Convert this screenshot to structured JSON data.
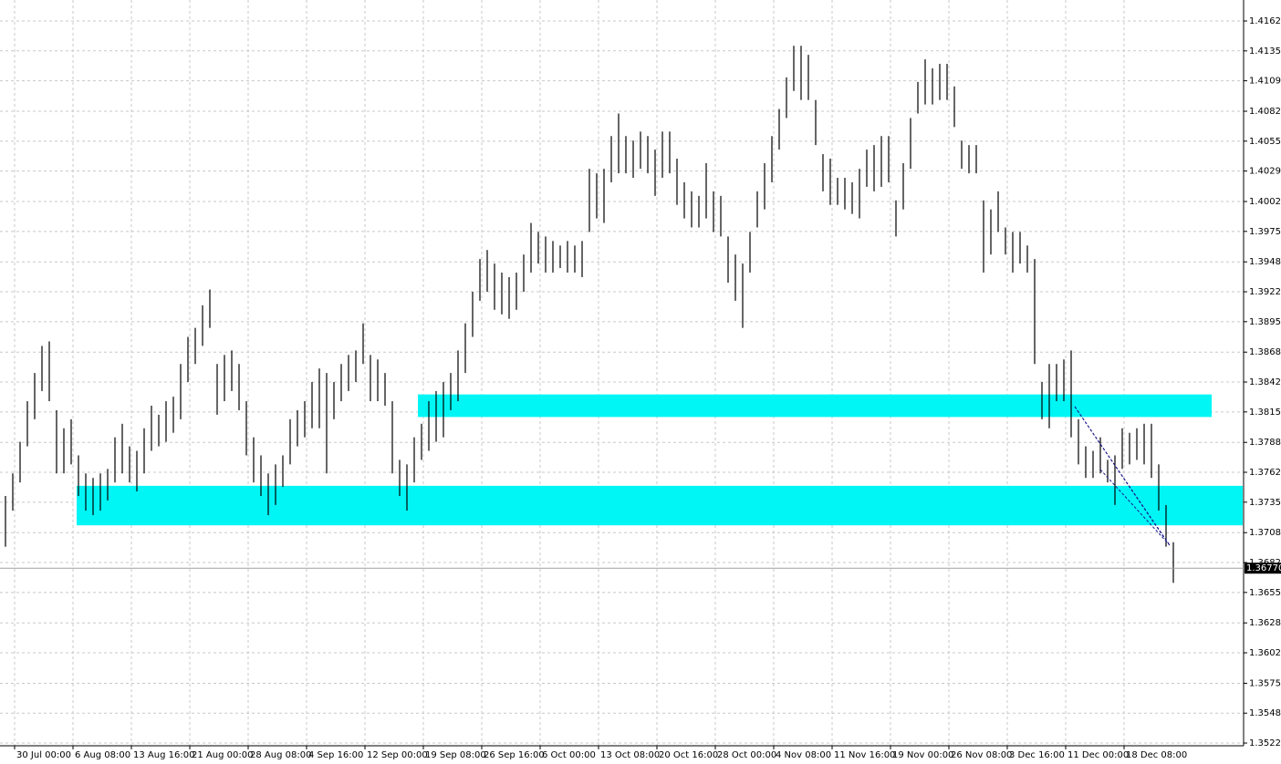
{
  "chart_data": {
    "type": "ohlc-bars",
    "categories": [
      null,
      null,
      "30 Jul 00:00",
      null,
      null,
      null,
      null,
      null,
      null,
      null,
      "6 Aug 08:00",
      null,
      null,
      null,
      null,
      null,
      null,
      null,
      "13 Aug 16:00",
      null,
      null,
      null,
      null,
      null,
      null,
      null,
      "21 Aug 00:00",
      null,
      null,
      null,
      null,
      null,
      null,
      null,
      "28 Aug 08:00",
      null,
      null,
      null,
      null,
      null,
      null,
      null,
      "4 Sep 16:00",
      null,
      null,
      null,
      null,
      null,
      null,
      null,
      "12 Sep 00:00",
      null,
      null,
      null,
      null,
      null,
      null,
      null,
      "19 Sep 08:00",
      null,
      null,
      null,
      null,
      null,
      null,
      null,
      "26 Sep 16:00",
      null,
      null,
      null,
      null,
      null,
      null,
      null,
      "6 Oct 00:00",
      null,
      null,
      null,
      null,
      null,
      null,
      null,
      "13 Oct 08:00",
      null,
      null,
      null,
      null,
      null,
      null,
      null,
      "20 Oct 16:00",
      null,
      null,
      null,
      null,
      null,
      null,
      null,
      "28 Oct 00:00",
      null,
      null,
      null,
      null,
      null,
      null,
      null,
      "4 Nov 08:00",
      null,
      null,
      null,
      null,
      null,
      null,
      null,
      "11 Nov 16:00",
      null,
      null,
      null,
      null,
      null,
      null,
      null,
      "19 Nov 00:00",
      null,
      null,
      null,
      null,
      null,
      null,
      null,
      "26 Nov 08:00",
      null,
      null,
      null,
      null,
      null,
      null,
      null,
      "3 Dec 16:00",
      null,
      null,
      null,
      null,
      null,
      null,
      null,
      "11 Dec 00:00",
      null,
      null,
      null,
      null,
      null,
      null,
      null,
      "18 Dec 08:00",
      null,
      null,
      null,
      null,
      null,
      null
    ],
    "high": [
      1.3741,
      1.3761,
      1.3789,
      1.3825,
      1.385,
      1.3874,
      1.3878,
      1.3817,
      1.3801,
      1.3809,
      1.3777,
      1.3761,
      1.3757,
      1.3761,
      1.3765,
      1.3793,
      1.3805,
      1.3785,
      1.3781,
      1.3801,
      1.3821,
      1.3813,
      1.3825,
      1.3829,
      1.3858,
      1.3882,
      1.389,
      1.391,
      1.3924,
      1.3858,
      1.3866,
      1.387,
      1.3858,
      1.3825,
      1.3793,
      1.3777,
      1.3761,
      1.3769,
      1.3777,
      1.3809,
      1.3817,
      1.3825,
      1.3842,
      1.3854,
      1.385,
      1.3842,
      1.3858,
      1.3866,
      1.387,
      1.3894,
      1.3866,
      1.3862,
      1.385,
      1.3825,
      1.3773,
      1.3769,
      1.3793,
      1.3805,
      1.3825,
      1.3834,
      1.3842,
      1.385,
      1.387,
      1.3894,
      1.3922,
      1.3951,
      1.3959,
      1.3947,
      1.3939,
      1.3935,
      1.3939,
      1.3955,
      1.3983,
      1.3975,
      1.3971,
      1.3967,
      1.3963,
      1.3967,
      1.3963,
      1.3967,
      1.4031,
      1.4027,
      1.4031,
      1.406,
      1.408,
      1.406,
      1.4056,
      1.4064,
      1.406,
      1.4048,
      1.4064,
      1.4064,
      1.404,
      1.4019,
      1.4011,
      1.4007,
      1.4036,
      1.4011,
      1.4007,
      1.3971,
      1.3955,
      1.3947,
      1.3975,
      1.4011,
      1.4036,
      1.406,
      1.4084,
      1.4112,
      1.414,
      1.414,
      1.4132,
      1.4092,
      1.4044,
      1.404,
      1.4023,
      1.4023,
      1.4019,
      1.4031,
      1.4048,
      1.4052,
      1.406,
      1.406,
      1.4003,
      1.4036,
      1.4076,
      1.4108,
      1.4128,
      1.412,
      1.4124,
      1.4124,
      1.4104,
      1.4056,
      1.4052,
      1.4052,
      1.4003,
      1.3995,
      1.4011,
      1.3979,
      1.3975,
      1.3975,
      1.3963,
      1.3951,
      1.3842,
      1.3858,
      1.3858,
      1.3862,
      1.387,
      1.3809,
      1.3785,
      1.3781,
      1.3793,
      1.3773,
      1.3777,
      1.3801,
      1.3797,
      1.3801,
      1.3805,
      1.3805,
      1.3769,
      1.3733,
      1.37
    ],
    "low": [
      1.3696,
      1.3728,
      1.3753,
      1.3785,
      1.3809,
      1.3834,
      1.3825,
      1.3761,
      1.3761,
      1.3769,
      1.3741,
      1.3728,
      1.3724,
      1.3728,
      1.3737,
      1.3753,
      1.3761,
      1.3753,
      1.3745,
      1.3761,
      1.3781,
      1.3785,
      1.3789,
      1.3797,
      1.3809,
      1.3842,
      1.3858,
      1.3874,
      1.389,
      1.3813,
      1.3825,
      1.3834,
      1.3817,
      1.3777,
      1.3753,
      1.3741,
      1.3724,
      1.3733,
      1.3749,
      1.3769,
      1.3785,
      1.3793,
      1.3801,
      1.3801,
      1.3761,
      1.3809,
      1.3825,
      1.3834,
      1.3842,
      1.3858,
      1.3825,
      1.3825,
      1.3821,
      1.3761,
      1.3741,
      1.3728,
      1.3753,
      1.3773,
      1.3781,
      1.3789,
      1.3793,
      1.3817,
      1.3825,
      1.385,
      1.3882,
      1.3914,
      1.3922,
      1.3906,
      1.3902,
      1.3898,
      1.3906,
      1.3922,
      1.3939,
      1.3947,
      1.3939,
      1.3939,
      1.3943,
      1.3939,
      1.3939,
      1.3935,
      1.3975,
      1.3987,
      1.3983,
      1.4019,
      1.4027,
      1.4027,
      1.4023,
      1.4031,
      1.4027,
      1.4007,
      1.4023,
      1.4027,
      1.3999,
      1.3987,
      1.3979,
      1.3979,
      1.3987,
      1.3975,
      1.3971,
      1.393,
      1.3914,
      1.389,
      1.3939,
      1.3979,
      1.3995,
      1.4019,
      1.4048,
      1.4076,
      1.41,
      1.4092,
      1.4092,
      1.4052,
      1.4011,
      1.3999,
      1.3999,
      1.3995,
      1.3991,
      1.3987,
      1.4015,
      1.4011,
      1.4015,
      1.4019,
      1.3971,
      1.3995,
      1.4031,
      1.408,
      1.4088,
      1.4088,
      1.4092,
      1.4092,
      1.4068,
      1.4031,
      1.4027,
      1.4027,
      1.3939,
      1.3955,
      1.3975,
      1.3955,
      1.3939,
      1.3947,
      1.3939,
      1.3858,
      1.3809,
      1.3801,
      1.3825,
      1.3825,
      1.3793,
      1.3769,
      1.3757,
      1.3757,
      1.3761,
      1.3753,
      1.3733,
      1.3765,
      1.3769,
      1.3773,
      1.3769,
      1.3757,
      1.3728,
      1.3696,
      1.3664
    ],
    "color": "#000000",
    "zones": [
      {
        "top": 1.3831,
        "bottom": 1.3811,
        "color": "#00f5f5"
      },
      {
        "top": 1.375,
        "bottom": 1.3715,
        "color": "#00f5f5"
      }
    ],
    "last_price": {
      "value": 1.3677,
      "label": "1.36770"
    },
    "ylim": [
      1.35196,
      1.41806
    ],
    "yticks": [
      {
        "value": 1.4162,
        "label": "1.41620"
      },
      1.41355,
      {
        "value": 1.4109,
        "label": "1.41090"
      },
      {
        "value": 1.4082,
        "label": "1.40820"
      },
      1.40555,
      {
        "value": 1.4029,
        "label": "1.40290"
      },
      {
        "value": 1.4002,
        "label": "1.40020"
      },
      1.39755,
      1.39485,
      {
        "value": 1.3922,
        "label": "1.39220"
      },
      1.38955,
      1.38685,
      {
        "value": 1.3842,
        "label": "1.38420"
      },
      1.38155,
      1.37885,
      {
        "value": 1.3762,
        "label": "1.37620"
      },
      1.37355,
      1.37085,
      {
        "value": 1.3682,
        "label": "1.36820"
      },
      1.36555,
      1.36285,
      {
        "value": 1.3602,
        "label": "1.36020"
      },
      {
        "value": 1.3575,
        "label": "1.35750"
      },
      1.35485,
      {
        "value": 1.3522,
        "label": "1.35220"
      }
    ],
    "grid": true
  }
}
